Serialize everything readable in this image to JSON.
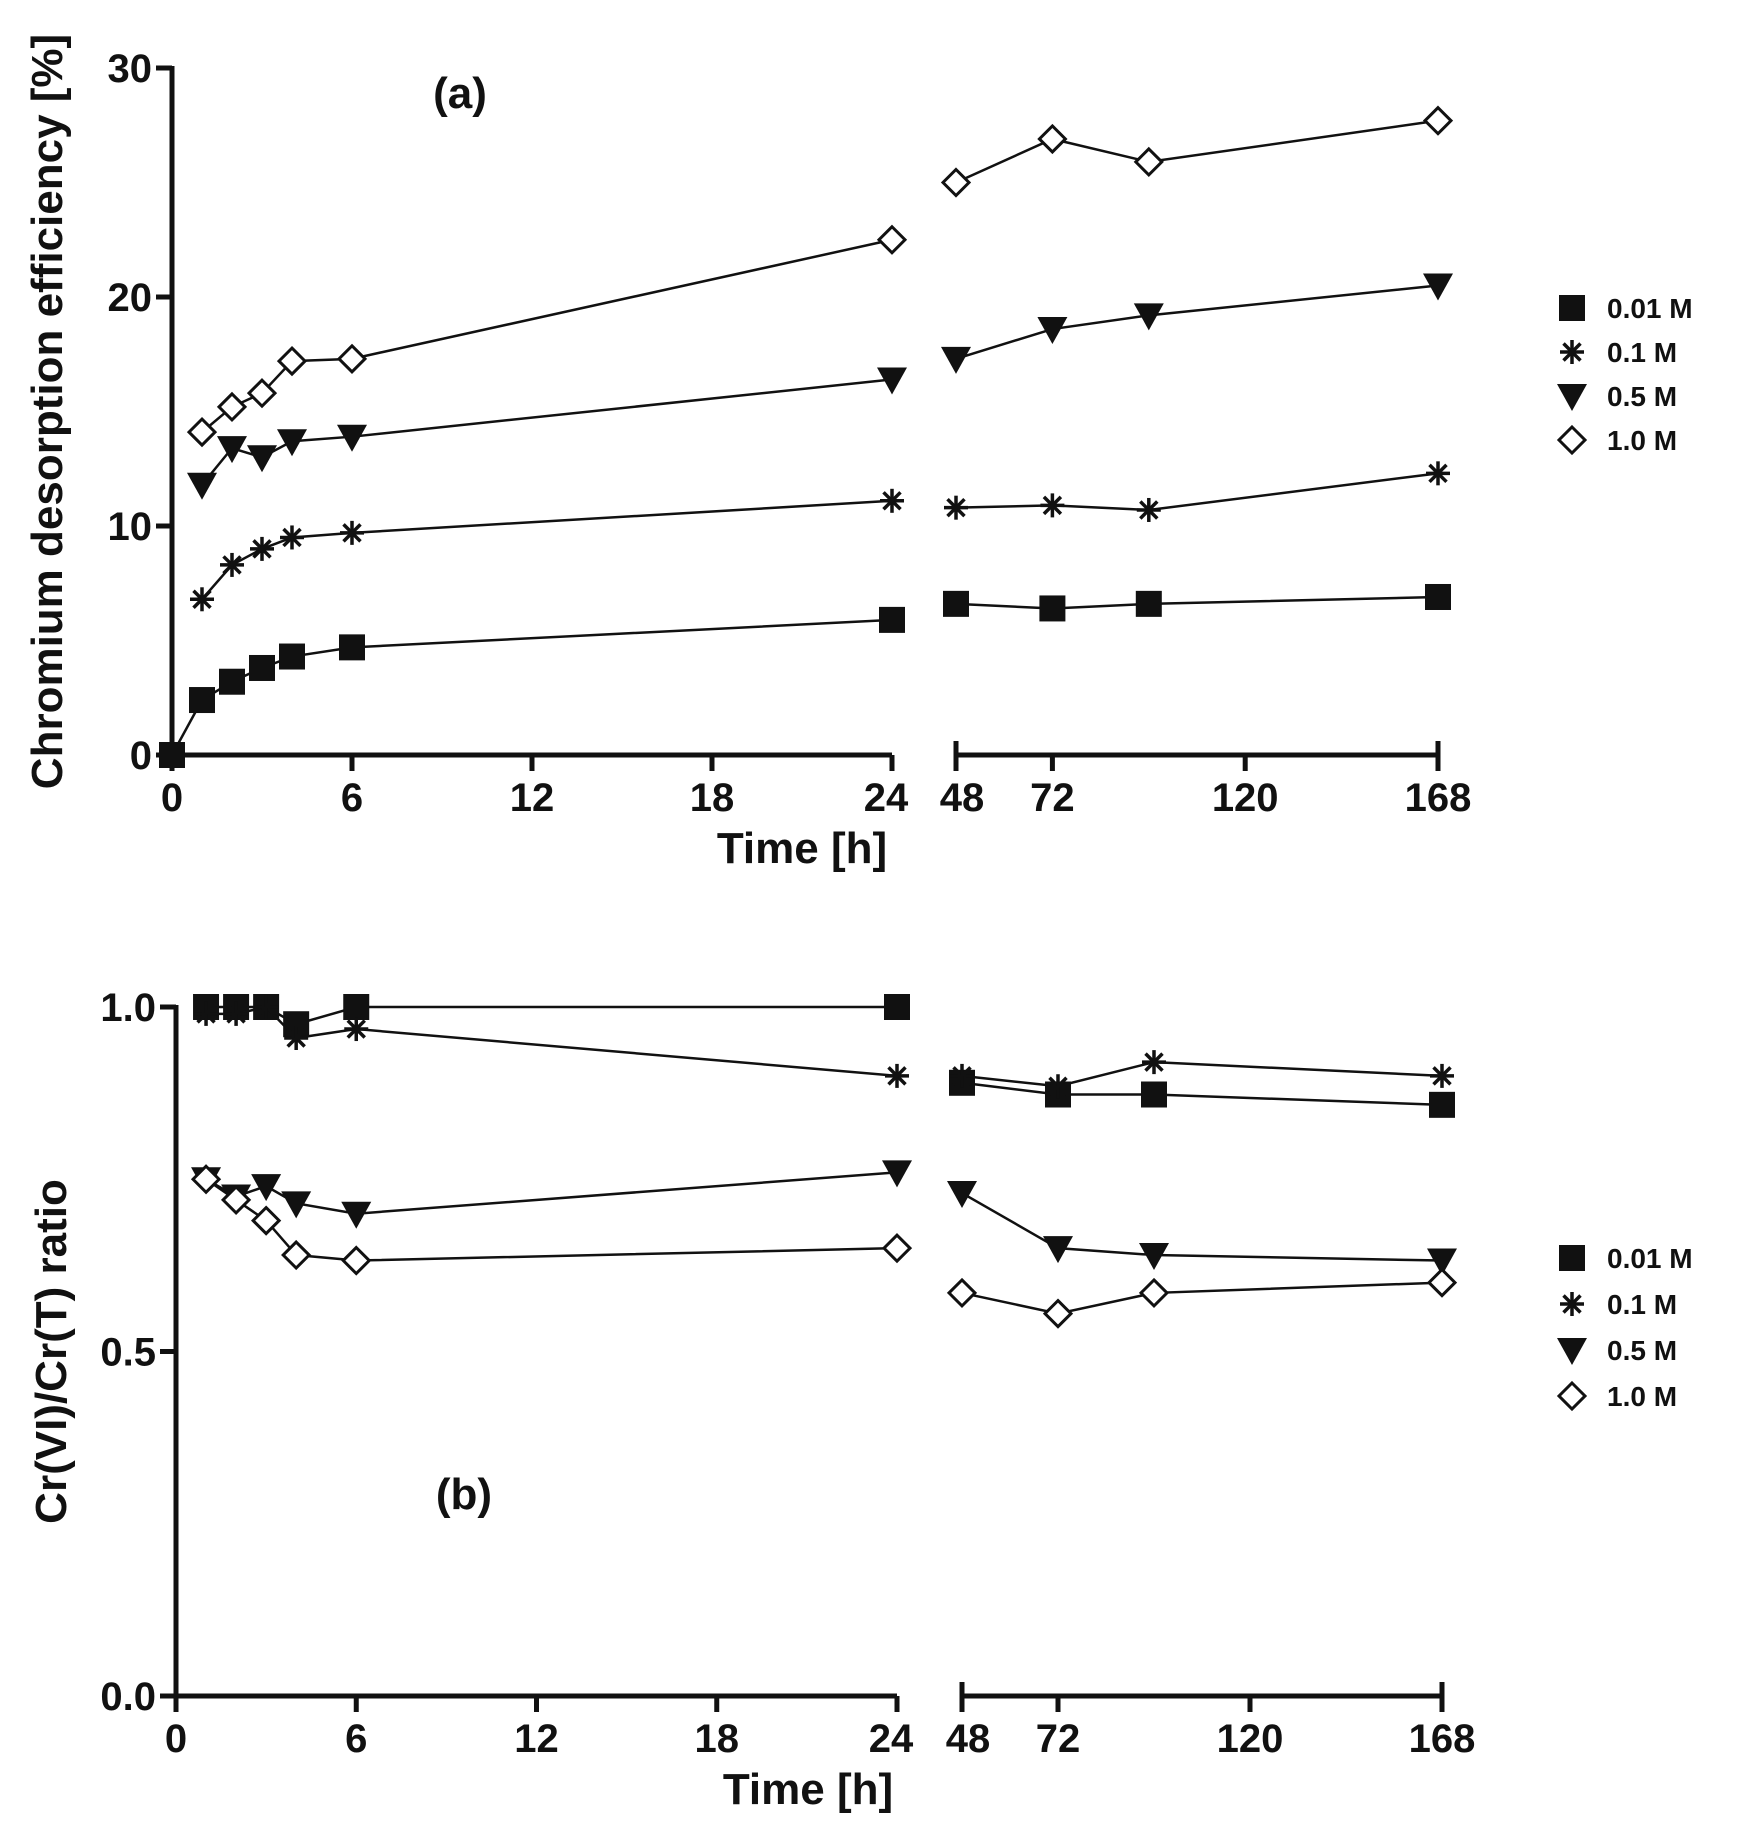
{
  "chart_data": [
    {
      "type": "line",
      "panel_label": "(a)",
      "xlabel": "Time [h]",
      "ylabel": "Chromium desorption efficiency [%]",
      "ylim": [
        0,
        30
      ],
      "yticks": [
        0,
        10,
        20,
        30
      ],
      "x_segments": [
        {
          "range": [
            0,
            24
          ],
          "ticks": [
            0,
            6,
            12,
            18,
            24
          ]
        },
        {
          "range": [
            48,
            168
          ],
          "ticks": [
            48,
            72,
            120,
            168
          ]
        }
      ],
      "legend_position": "right",
      "series": [
        {
          "name": "0.01 M",
          "marker": "square",
          "x": [
            0,
            1,
            2,
            3,
            4,
            6,
            24,
            48,
            72,
            96,
            168
          ],
          "y": [
            0,
            2.4,
            3.2,
            3.8,
            4.3,
            4.7,
            5.9,
            6.6,
            6.4,
            6.6,
            6.9
          ]
        },
        {
          "name": "0.1 M",
          "marker": "asterisk",
          "x": [
            1,
            2,
            3,
            4,
            6,
            24,
            48,
            72,
            96,
            168
          ],
          "y": [
            6.8,
            8.3,
            9.0,
            9.5,
            9.7,
            11.1,
            10.8,
            10.9,
            10.7,
            12.3
          ]
        },
        {
          "name": "0.5 M",
          "marker": "triangle-down",
          "x": [
            1,
            2,
            3,
            4,
            6,
            24,
            48,
            72,
            96,
            168
          ],
          "y": [
            11.8,
            13.4,
            13.0,
            13.7,
            13.9,
            16.4,
            17.3,
            18.6,
            19.2,
            20.5
          ]
        },
        {
          "name": "1.0 M",
          "marker": "diamond-open",
          "x": [
            1,
            2,
            3,
            4,
            6,
            24,
            48,
            72,
            96,
            168
          ],
          "y": [
            14.1,
            15.2,
            15.8,
            17.2,
            17.3,
            22.5,
            25.0,
            26.9,
            25.9,
            27.7
          ]
        }
      ]
    },
    {
      "type": "line",
      "panel_label": "(b)",
      "xlabel": "Time [h]",
      "ylabel": "Cr(VI)/Cr(T) ratio",
      "ylim": [
        0,
        1
      ],
      "yticks": [
        0,
        0.5,
        1.0
      ],
      "ytick_labels": [
        "0.0",
        "0.5",
        "1.0"
      ],
      "x_segments": [
        {
          "range": [
            0,
            24
          ],
          "ticks": [
            0,
            6,
            12,
            18,
            24
          ]
        },
        {
          "range": [
            48,
            168
          ],
          "ticks": [
            48,
            72,
            120,
            168
          ]
        }
      ],
      "legend_position": "right",
      "series": [
        {
          "name": "0.01 M",
          "marker": "square",
          "x": [
            1,
            2,
            3,
            4,
            6,
            24,
            48,
            72,
            96,
            168
          ],
          "y": [
            1.0,
            1.0,
            1.0,
            0.975,
            1.0,
            1.0,
            0.89,
            0.873,
            0.873,
            0.858
          ]
        },
        {
          "name": "0.1 M",
          "marker": "asterisk",
          "x": [
            1,
            2,
            3,
            4,
            6,
            24,
            48,
            72,
            96,
            168
          ],
          "y": [
            0.99,
            0.99,
            1.0,
            0.955,
            0.968,
            0.9,
            0.9,
            0.885,
            0.92,
            0.9
          ]
        },
        {
          "name": "0.5 M",
          "marker": "triangle-down",
          "x": [
            1,
            2,
            3,
            4,
            6,
            24,
            48,
            72,
            96,
            168
          ],
          "y": [
            0.75,
            0.725,
            0.74,
            0.715,
            0.7,
            0.76,
            0.73,
            0.65,
            0.64,
            0.632
          ]
        },
        {
          "name": "1.0 M",
          "marker": "diamond-open",
          "x": [
            1,
            2,
            3,
            4,
            6,
            24,
            48,
            72,
            96,
            168
          ],
          "y": [
            0.75,
            0.72,
            0.69,
            0.64,
            0.632,
            0.65,
            0.585,
            0.555,
            0.585,
            0.6
          ]
        }
      ]
    }
  ]
}
